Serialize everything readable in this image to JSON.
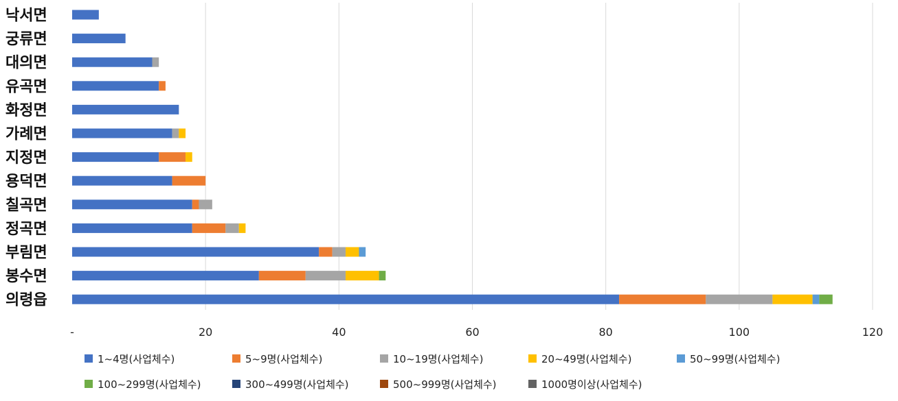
{
  "chart_data": {
    "type": "bar",
    "orientation": "horizontal",
    "stacked": true,
    "categories": [
      "낙서면",
      "궁류면",
      "대의면",
      "유곡면",
      "화정면",
      "가례면",
      "지정면",
      "용덕면",
      "칠곡면",
      "정곡면",
      "부림면",
      "봉수면",
      "의령읍"
    ],
    "x_ticks": [
      "-",
      "20",
      "40",
      "60",
      "80",
      "100",
      "120"
    ],
    "xlim": [
      0,
      120
    ],
    "grid": "vertical",
    "legend_position": "bottom",
    "series": [
      {
        "name": "1~4명(사업체수)",
        "color": "#4472C4",
        "values": [
          4,
          8,
          12,
          13,
          16,
          15,
          13,
          15,
          18,
          18,
          37,
          28,
          82
        ]
      },
      {
        "name": "5~9명(사업체수)",
        "color": "#ED7D31",
        "values": [
          0,
          0,
          0,
          1,
          0,
          0,
          4,
          5,
          1,
          5,
          2,
          7,
          13
        ]
      },
      {
        "name": "10~19명(사업체수)",
        "color": "#A5A5A5",
        "values": [
          0,
          0,
          1,
          0,
          0,
          1,
          0,
          0,
          2,
          2,
          2,
          6,
          10
        ]
      },
      {
        "name": "20~49명(사업체수)",
        "color": "#FFC000",
        "values": [
          0,
          0,
          0,
          0,
          0,
          1,
          1,
          0,
          0,
          1,
          2,
          5,
          6
        ]
      },
      {
        "name": "50~99명(사업체수)",
        "color": "#5B9BD5",
        "values": [
          0,
          0,
          0,
          0,
          0,
          0,
          0,
          0,
          0,
          0,
          1,
          0,
          1
        ]
      },
      {
        "name": "100~299명(사업체수)",
        "color": "#70AD47",
        "values": [
          0,
          0,
          0,
          0,
          0,
          0,
          0,
          0,
          0,
          0,
          0,
          1,
          2
        ]
      },
      {
        "name": "300~499명(사업체수)",
        "color": "#264478",
        "values": [
          0,
          0,
          0,
          0,
          0,
          0,
          0,
          0,
          0,
          0,
          0,
          0,
          0
        ]
      },
      {
        "name": "500~999명(사업체수)",
        "color": "#9E480E",
        "values": [
          0,
          0,
          0,
          0,
          0,
          0,
          0,
          0,
          0,
          0,
          0,
          0,
          0
        ]
      },
      {
        "name": "1000명이상(사업체수)",
        "color": "#636363",
        "values": [
          0,
          0,
          0,
          0,
          0,
          0,
          0,
          0,
          0,
          0,
          0,
          0,
          0
        ]
      }
    ]
  }
}
